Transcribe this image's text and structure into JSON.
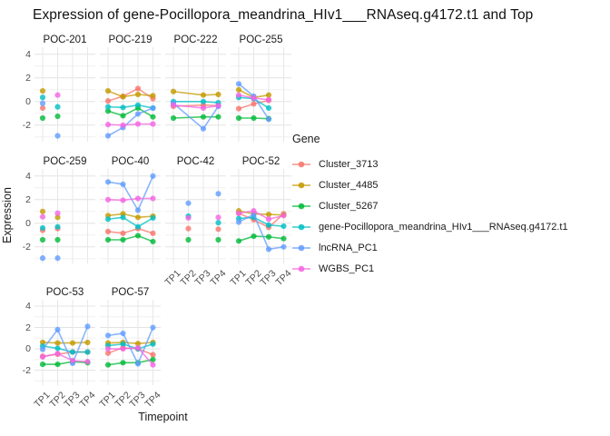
{
  "title": "Expression of gene-Pocillopora_meandrina_HIv1___RNAseq.g4172.t1 and Top",
  "axes": {
    "x_label": "Timepoint",
    "y_label": "Expression",
    "y_tick_labels": [
      "4",
      "2",
      "0",
      "-2"
    ],
    "y_tick_values": [
      4,
      2,
      0,
      -2
    ],
    "x_tick_labels": [
      "TP1",
      "TP2",
      "TP3",
      "TP4"
    ]
  },
  "legend": {
    "title": "Gene",
    "entries": [
      {
        "label": "Cluster_3713",
        "color": "#F8766D"
      },
      {
        "label": "Cluster_4485",
        "color": "#C49A00"
      },
      {
        "label": "Cluster_5267",
        "color": "#00BA38"
      },
      {
        "label": "gene-Pocillopora_meandrina_HIv1___RNAseq.g4172.t1",
        "color": "#00BFC4"
      },
      {
        "label": "lncRNA_PC1",
        "color": "#619CFF"
      },
      {
        "label": "WGBS_PC1",
        "color": "#F564E3"
      }
    ]
  },
  "chart_data": {
    "type": "line",
    "x": [
      "TP1",
      "TP2",
      "TP3",
      "TP4"
    ],
    "ylim": [
      -3.4,
      4.6
    ],
    "y_gridlines_major": [
      -2,
      0,
      2,
      4
    ],
    "y_gridlines_minor": [
      -3,
      -1,
      1,
      3
    ],
    "grid": true,
    "legend_position": "right",
    "series_names": [
      "Cluster_3713",
      "Cluster_4485",
      "Cluster_5267",
      "gene-Pocillopora_meandrina_HIv1___RNAseq.g4172.t1",
      "lncRNA_PC1",
      "WGBS_PC1"
    ],
    "facets": [
      {
        "name": "POC-201",
        "draw_lines": false,
        "values": [
          [
            -0.55,
            null,
            null,
            null
          ],
          [
            0.9,
            null,
            null,
            null
          ],
          [
            -1.4,
            -1.25,
            null,
            null
          ],
          [
            0.35,
            -0.45,
            null,
            null
          ],
          [
            -0.15,
            -2.9,
            null,
            null
          ],
          [
            null,
            0.55,
            null,
            null
          ]
        ]
      },
      {
        "name": "POC-219",
        "draw_lines": true,
        "values": [
          [
            0.05,
            0.45,
            1.1,
            0.25
          ],
          [
            0.9,
            0.4,
            0.6,
            0.5
          ],
          [
            -0.8,
            -1.2,
            -0.55,
            -1.3
          ],
          [
            -0.45,
            -0.5,
            -0.3,
            -0.55
          ],
          [
            -2.9,
            -2.2,
            -1.05,
            -0.55
          ],
          [
            -1.95,
            -2.0,
            -1.9,
            -1.9
          ]
        ]
      },
      {
        "name": "POC-222",
        "draw_lines": true,
        "values": [
          [
            -0.4,
            null,
            -0.3,
            -0.35
          ],
          [
            0.85,
            null,
            0.55,
            0.6
          ],
          [
            -1.4,
            null,
            -1.3,
            -1.3
          ],
          [
            0.0,
            null,
            0.0,
            -0.1
          ],
          [
            -0.15,
            null,
            -2.3,
            -0.4
          ],
          [
            -0.3,
            null,
            -0.55,
            -0.35
          ]
        ]
      },
      {
        "name": "POC-255",
        "draw_lines": true,
        "values": [
          [
            -0.6,
            -0.2,
            0.1,
            null
          ],
          [
            1.0,
            0.35,
            0.55,
            null
          ],
          [
            -1.4,
            -1.4,
            -1.45,
            null
          ],
          [
            0.35,
            0.25,
            -0.55,
            null
          ],
          [
            1.5,
            0.45,
            -1.5,
            null
          ],
          [
            0.55,
            0.3,
            0.15,
            null
          ]
        ]
      },
      {
        "name": "POC-259",
        "draw_lines": false,
        "values": [
          [
            -0.6,
            -0.45,
            null,
            null
          ],
          [
            1.0,
            0.5,
            null,
            null
          ],
          [
            -1.4,
            -1.4,
            null,
            null
          ],
          [
            -0.4,
            -0.3,
            null,
            null
          ],
          [
            -2.95,
            -2.95,
            null,
            null
          ],
          [
            0.55,
            0.85,
            null,
            null
          ]
        ]
      },
      {
        "name": "POC-40",
        "draw_lines": true,
        "values": [
          [
            -0.7,
            -0.85,
            -0.45,
            -0.85
          ],
          [
            0.65,
            0.8,
            0.5,
            0.6
          ],
          [
            -1.4,
            -1.4,
            -1.05,
            -1.55
          ],
          [
            0.35,
            0.5,
            -0.3,
            0.45
          ],
          [
            3.5,
            3.3,
            1.1,
            4.0
          ],
          [
            2.0,
            1.95,
            2.1,
            2.1
          ]
        ]
      },
      {
        "name": "POC-42",
        "draw_lines": false,
        "values": [
          [
            null,
            -0.45,
            null,
            -0.5
          ],
          [
            null,
            null,
            null,
            null
          ],
          [
            null,
            -1.4,
            null,
            -1.4
          ],
          [
            null,
            0.6,
            null,
            0.05
          ],
          [
            null,
            1.7,
            null,
            2.5
          ],
          [
            null,
            0.45,
            null,
            0.5
          ]
        ]
      },
      {
        "name": "POC-52",
        "draw_lines": true,
        "values": [
          [
            0.85,
            0.3,
            -0.35,
            0.8
          ],
          [
            1.05,
            0.8,
            0.75,
            0.7
          ],
          [
            -1.5,
            -1.1,
            -1.15,
            -1.3
          ],
          [
            0.4,
            0.5,
            -0.15,
            -0.25
          ],
          [
            0.1,
            0.75,
            -2.2,
            -2.0
          ],
          [
            0.85,
            1.05,
            0.35,
            0.65
          ]
        ]
      },
      {
        "name": "POC-53",
        "draw_lines": true,
        "values": [
          [
            -0.7,
            -0.5,
            -0.3,
            -0.3
          ],
          [
            0.6,
            0.55,
            0.55,
            0.6
          ],
          [
            -1.45,
            -1.45,
            -1.2,
            -1.3
          ],
          [
            0.25,
            0.05,
            -0.3,
            -0.3
          ],
          [
            -0.05,
            1.8,
            -1.35,
            2.1
          ],
          [
            -0.75,
            -0.45,
            -1.1,
            -1.2
          ]
        ]
      },
      {
        "name": "POC-57",
        "draw_lines": true,
        "values": [
          [
            -0.4,
            0.1,
            0.0,
            -0.55
          ],
          [
            0.55,
            0.6,
            0.5,
            0.6
          ],
          [
            -1.5,
            -1.3,
            -1.3,
            -1.0
          ],
          [
            0.3,
            0.45,
            0.0,
            0.45
          ],
          [
            1.25,
            1.45,
            -1.4,
            2.0
          ],
          [
            0.0,
            0.0,
            0.1,
            -1.5
          ]
        ]
      }
    ]
  }
}
